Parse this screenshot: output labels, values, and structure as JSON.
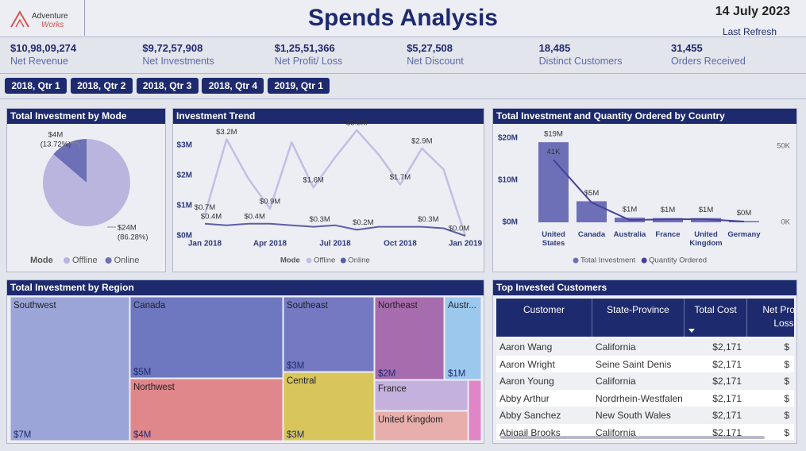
{
  "header": {
    "logo_top": "Adventure",
    "logo_bottom": "Works",
    "title": "Spends Analysis",
    "date": "14 July 2023",
    "refresh_label": "Last Refresh"
  },
  "kpis": [
    {
      "value": "$10,98,09,274",
      "label": "Net Revenue"
    },
    {
      "value": "$9,72,57,908",
      "label": "Net Investments"
    },
    {
      "value": "$1,25,51,366",
      "label": "Net Profit/ Loss"
    },
    {
      "value": "$5,27,508",
      "label": "Net Discount"
    },
    {
      "value": "18,485",
      "label": "Distinct Customers"
    },
    {
      "value": "31,455",
      "label": "Orders Received"
    }
  ],
  "filters": [
    "2018, Qtr 1",
    "2018, Qtr 2",
    "2018, Qtr 3",
    "2018, Qtr 4",
    "2019, Qtr 1"
  ],
  "chart_data": [
    {
      "type": "pie",
      "title": "Total Investment by Mode",
      "legend_title": "Mode",
      "categories": [
        "Offline",
        "Online"
      ],
      "values": [
        24,
        4
      ],
      "value_labels": [
        "$24M",
        "$4M"
      ],
      "percents": [
        86.28,
        13.72
      ],
      "percent_labels": [
        "(86.28%)",
        "(13.72%)"
      ],
      "colors": [
        "#bab5df",
        "#6d70b6"
      ]
    },
    {
      "type": "line",
      "title": "Investment Trend",
      "legend_title": "Mode",
      "x": [
        "Jan 2018",
        null,
        null,
        "Apr 2018",
        null,
        null,
        "Jul 2018",
        null,
        null,
        "Oct 2018",
        null,
        null,
        "Jan 2019"
      ],
      "series": [
        {
          "name": "Offline",
          "color": "#c3bee2",
          "values": [
            0.7,
            3.2,
            1.9,
            0.9,
            3.1,
            1.6,
            2.6,
            3.5,
            2.7,
            1.7,
            2.9,
            2.2,
            0.0
          ],
          "value_labels": [
            "$0.7M",
            "$3.2M",
            null,
            "$0.9M",
            null,
            "$1.6M",
            null,
            "$3.5M",
            null,
            "$1.7M",
            "$2.9M",
            null,
            "$0.0M"
          ]
        },
        {
          "name": "Online",
          "color": "#5b5ea6",
          "values": [
            0.4,
            0.35,
            0.4,
            0.4,
            0.35,
            0.3,
            0.35,
            0.2,
            0.3,
            0.3,
            0.3,
            0.25,
            0.0
          ],
          "value_labels": [
            "$0.4M",
            null,
            "$0.4M",
            null,
            null,
            "$0.3M",
            null,
            "$0.2M",
            null,
            null,
            "$0.3M",
            null,
            null
          ]
        }
      ],
      "ylim": [
        0,
        3.6
      ],
      "yticks": [
        {
          "value": 0,
          "label": "$0M"
        },
        {
          "value": 1,
          "label": "$1M"
        },
        {
          "value": 2,
          "label": "$2M"
        },
        {
          "value": 3,
          "label": "$3M"
        }
      ]
    },
    {
      "type": "bar+line",
      "title": "Total Investment and Quantity Ordered by Country",
      "categories": [
        "United States",
        "Canada",
        "Australia",
        "France",
        "United Kingdom",
        "Germany"
      ],
      "series": [
        {
          "name": "Total Investment",
          "type": "bar",
          "color": "#6d70b6",
          "values": [
            19,
            5,
            1.1,
            1,
            1,
            0.3
          ],
          "value_labels": [
            "$19M",
            "$5M",
            "$1M",
            "$1M",
            "$1M",
            "$0M"
          ]
        },
        {
          "name": "Quantity Ordered",
          "type": "line",
          "axis": "y2",
          "color": "#4a3f9a",
          "values": [
            41,
            13,
            1.5,
            2,
            2,
            0.5
          ],
          "value_labels": [
            "41K",
            null,
            null,
            null,
            null,
            null
          ]
        }
      ],
      "ylim": [
        0,
        22.6
      ],
      "yticks": [
        {
          "value": 0,
          "label": "$0M"
        },
        {
          "value": 10,
          "label": "$10M"
        },
        {
          "value": 20,
          "label": "$20M"
        }
      ],
      "y2lim": [
        0,
        62.5
      ],
      "y2ticks": [
        {
          "value": 0,
          "label": "0K"
        },
        {
          "value": 50,
          "label": "50K"
        }
      ]
    },
    {
      "type": "treemap",
      "title": "Total Investment by Region",
      "categories": [
        "Southwest",
        "Canada",
        "Northwest",
        "Southeast",
        "Central",
        "Northeast",
        "Austr...",
        "France",
        "United Kingdom",
        null
      ],
      "values": [
        7,
        5,
        4,
        3,
        3,
        2,
        1,
        1.1,
        1.1,
        0.3
      ],
      "value_labels": [
        "$7M",
        "$5M",
        "$4M",
        "$3M",
        "$3M",
        "$2M",
        "$1M",
        null,
        null,
        null
      ],
      "colors": [
        "#9ca5d8",
        "#6e78c0",
        "#e0878b",
        "#7479c2",
        "#d8c55c",
        "#a76cae",
        "#9dc8ee",
        "#c4b1de",
        "#e7aeac",
        "#e285c6"
      ]
    }
  ],
  "table": {
    "title": "Top Invested Customers",
    "columns": [
      "Customer",
      "State-Province",
      "Total Cost",
      "Net Profit/ Loss"
    ],
    "rows": [
      [
        "Aaron Wang",
        "California",
        "$2,171",
        "$"
      ],
      [
        "Aaron Wright",
        "Seine Saint Denis",
        "$2,171",
        "$"
      ],
      [
        "Aaron Young",
        "California",
        "$2,171",
        "$"
      ],
      [
        "Abby Arthur",
        "Nordrhein-Westfalen",
        "$2,171",
        "$"
      ],
      [
        "Abby Sanchez",
        "New South Wales",
        "$2,171",
        "$"
      ],
      [
        "Abigail Brooks",
        "California",
        "$2,171",
        "$"
      ]
    ]
  }
}
